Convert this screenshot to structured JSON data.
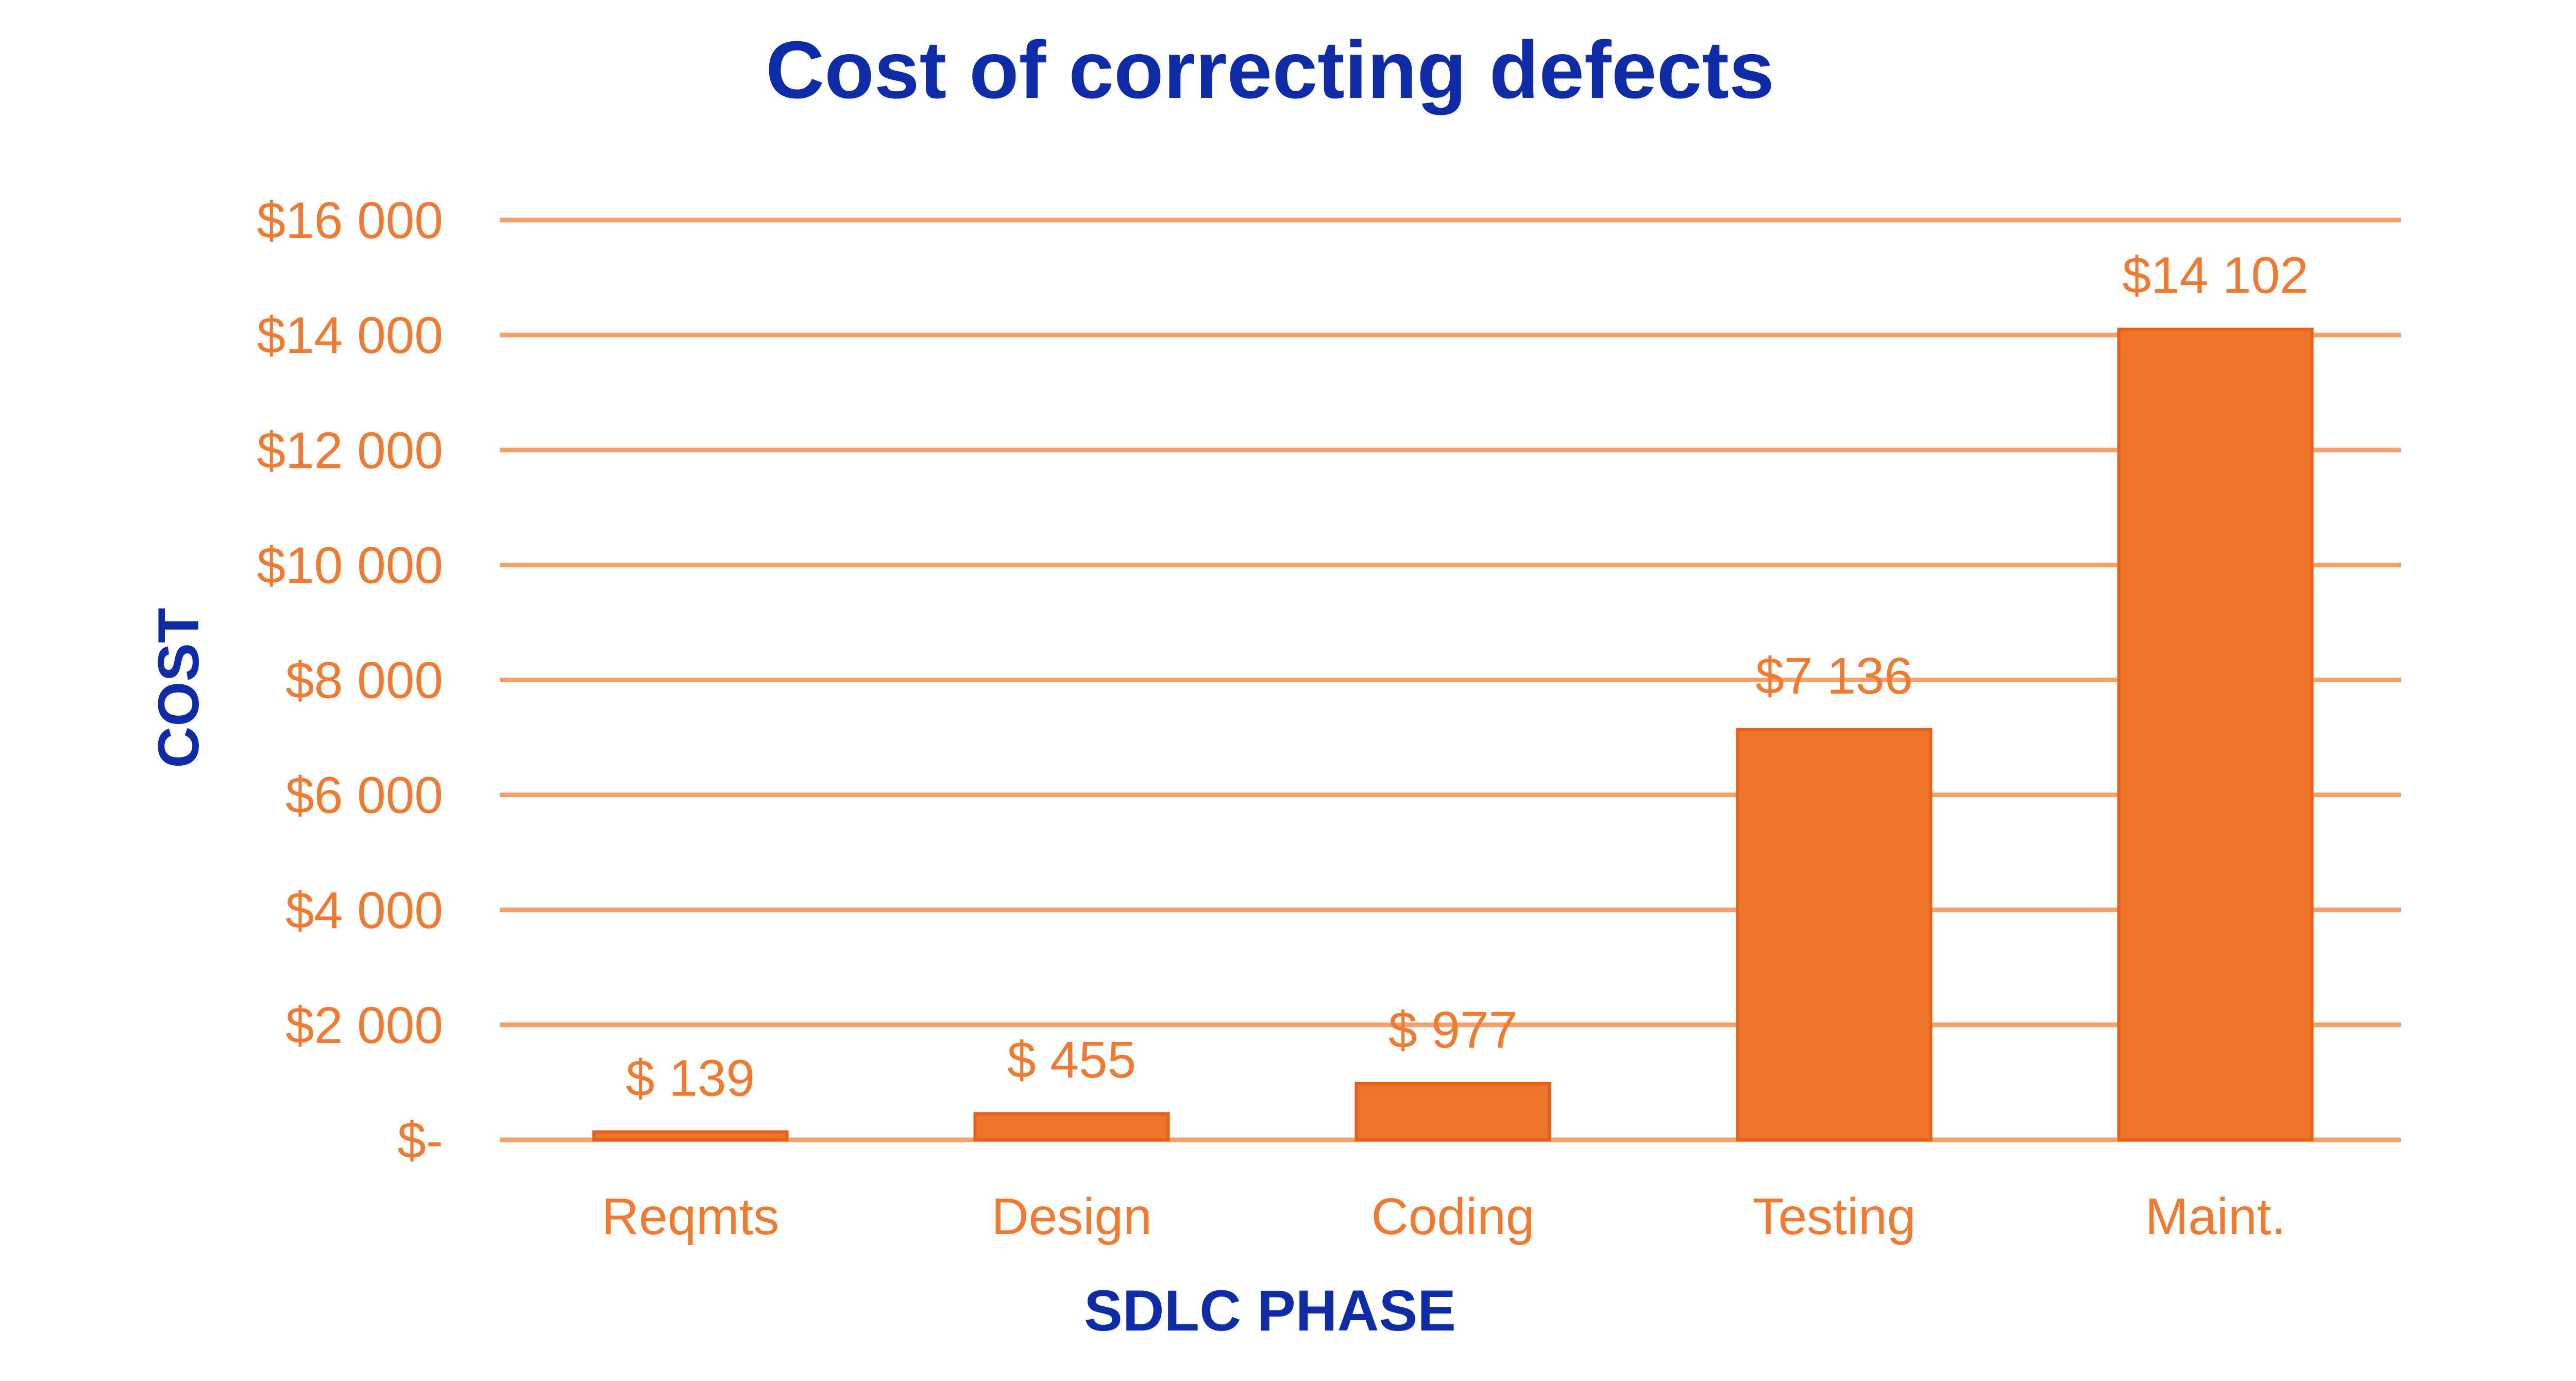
{
  "colors": {
    "title": "#0e2ba8",
    "bar": "#f07427",
    "bar_edge": "#e5621b",
    "grid": "#f3a06b",
    "tick_text": "#ef7a30",
    "background": "#ffffff"
  },
  "chart_data": {
    "type": "bar",
    "title": "Cost of correcting defects",
    "xlabel": "SDLC PHASE",
    "ylabel": "COST",
    "categories": [
      "Reqmts",
      "Design",
      "Coding",
      "Testing",
      "Maint."
    ],
    "values": [
      139,
      455,
      977,
      7136,
      14102
    ],
    "data_labels": [
      "$ 139",
      "$ 455",
      "$ 977",
      "$7 136",
      "$14 102"
    ],
    "ylim": [
      0,
      16000
    ],
    "yticks": [
      0,
      2000,
      4000,
      6000,
      8000,
      10000,
      12000,
      14000,
      16000
    ],
    "ytick_labels": [
      "$-",
      "$2 000",
      "$4 000",
      "$6 000",
      "$8 000",
      "$10 000",
      "$12 000",
      "$14 000",
      "$16 000"
    ],
    "grid": true,
    "legend": "none"
  }
}
